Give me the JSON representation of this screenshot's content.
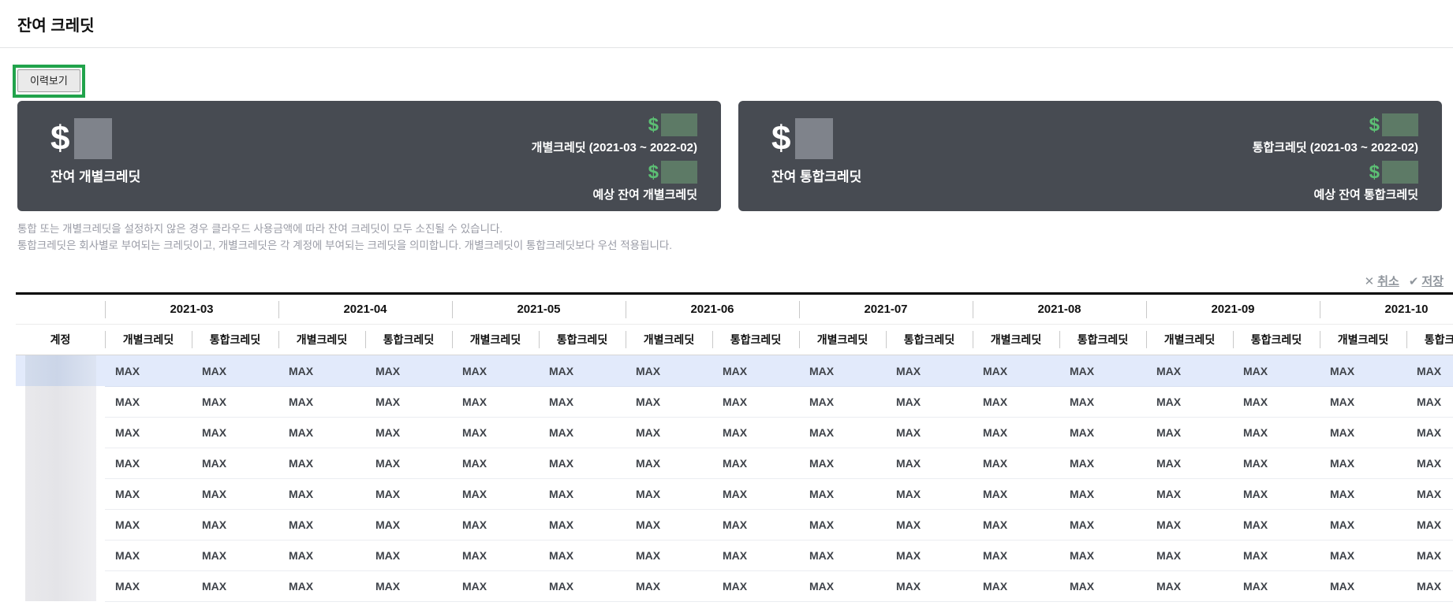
{
  "header": {
    "title": "잔여 크레딧"
  },
  "toolbar": {
    "history_button_label": "이력보기",
    "highlight_color": "#21a34b"
  },
  "cards": [
    {
      "currency": "$",
      "value_redacted": true,
      "main_label": "잔여 개별크레딧",
      "items": [
        {
          "currency": "$",
          "value_redacted": true,
          "label": "개별크레딧 (2021-03 ~ 2022-02)"
        },
        {
          "currency": "$",
          "value_redacted": true,
          "label": "예상 잔여 개별크레딧"
        }
      ],
      "bg_color": "#474b52",
      "accent_color": "#5cbf74"
    },
    {
      "currency": "$",
      "value_redacted": true,
      "main_label": "잔여 통합크레딧",
      "items": [
        {
          "currency": "$",
          "value_redacted": true,
          "label": "통합크레딧 (2021-03 ~ 2022-02)"
        },
        {
          "currency": "$",
          "value_redacted": true,
          "label": "예상 잔여 통합크레딧"
        }
      ],
      "bg_color": "#474b52",
      "accent_color": "#5cbf74"
    }
  ],
  "notes": {
    "line1": "통합 또는 개별크레딧을 설정하지 않은 경우 클라우드 사용금액에 따라 잔여 크레딧이 모두 소진될 수 있습니다.",
    "line2": "통합크레딧은 회사별로 부여되는 크레딧이고, 개별크레딧은 각 계정에 부여되는 크레딧을 의미합니다. 개별크레딧이 통합크레딧보다 우선 적용됩니다."
  },
  "actions": {
    "cancel_icon": "✕",
    "cancel_label": "취소",
    "save_icon": "✔",
    "save_label": "저장"
  },
  "table": {
    "account_header": "계정",
    "months": [
      "2021-03",
      "2021-04",
      "2021-05",
      "2021-06",
      "2021-07",
      "2021-08",
      "2021-09",
      "2021-10"
    ],
    "sub_columns": [
      "개별크레딧",
      "통합크레딧"
    ],
    "highlighted_row_index": 0,
    "rows": [
      {
        "account_redacted": true,
        "values": [
          "MAX",
          "MAX",
          "MAX",
          "MAX",
          "MAX",
          "MAX",
          "MAX",
          "MAX",
          "MAX",
          "MAX",
          "MAX",
          "MAX",
          "MAX",
          "MAX",
          "MAX",
          "MAX"
        ]
      },
      {
        "account_redacted": true,
        "values": [
          "MAX",
          "MAX",
          "MAX",
          "MAX",
          "MAX",
          "MAX",
          "MAX",
          "MAX",
          "MAX",
          "MAX",
          "MAX",
          "MAX",
          "MAX",
          "MAX",
          "MAX",
          "MAX"
        ]
      },
      {
        "account_redacted": true,
        "values": [
          "MAX",
          "MAX",
          "MAX",
          "MAX",
          "MAX",
          "MAX",
          "MAX",
          "MAX",
          "MAX",
          "MAX",
          "MAX",
          "MAX",
          "MAX",
          "MAX",
          "MAX",
          "MAX"
        ]
      },
      {
        "account_redacted": true,
        "values": [
          "MAX",
          "MAX",
          "MAX",
          "MAX",
          "MAX",
          "MAX",
          "MAX",
          "MAX",
          "MAX",
          "MAX",
          "MAX",
          "MAX",
          "MAX",
          "MAX",
          "MAX",
          "MAX"
        ]
      },
      {
        "account_redacted": true,
        "values": [
          "MAX",
          "MAX",
          "MAX",
          "MAX",
          "MAX",
          "MAX",
          "MAX",
          "MAX",
          "MAX",
          "MAX",
          "MAX",
          "MAX",
          "MAX",
          "MAX",
          "MAX",
          "MAX"
        ]
      },
      {
        "account_redacted": true,
        "values": [
          "MAX",
          "MAX",
          "MAX",
          "MAX",
          "MAX",
          "MAX",
          "MAX",
          "MAX",
          "MAX",
          "MAX",
          "MAX",
          "MAX",
          "MAX",
          "MAX",
          "MAX",
          "MAX"
        ]
      },
      {
        "account_redacted": true,
        "values": [
          "MAX",
          "MAX",
          "MAX",
          "MAX",
          "MAX",
          "MAX",
          "MAX",
          "MAX",
          "MAX",
          "MAX",
          "MAX",
          "MAX",
          "MAX",
          "MAX",
          "MAX",
          "MAX"
        ]
      },
      {
        "account_redacted": true,
        "values": [
          "MAX",
          "MAX",
          "MAX",
          "MAX",
          "MAX",
          "MAX",
          "MAX",
          "MAX",
          "MAX",
          "MAX",
          "MAX",
          "MAX",
          "MAX",
          "MAX",
          "MAX",
          "MAX"
        ]
      }
    ]
  },
  "colors": {
    "card_bg": "#474b52",
    "accent_green": "#5cbf74",
    "highlight_row_bg": "#e2eafb",
    "annotation_green": "#21a34b",
    "muted_text": "#999ba5",
    "action_text": "#8f959c"
  }
}
